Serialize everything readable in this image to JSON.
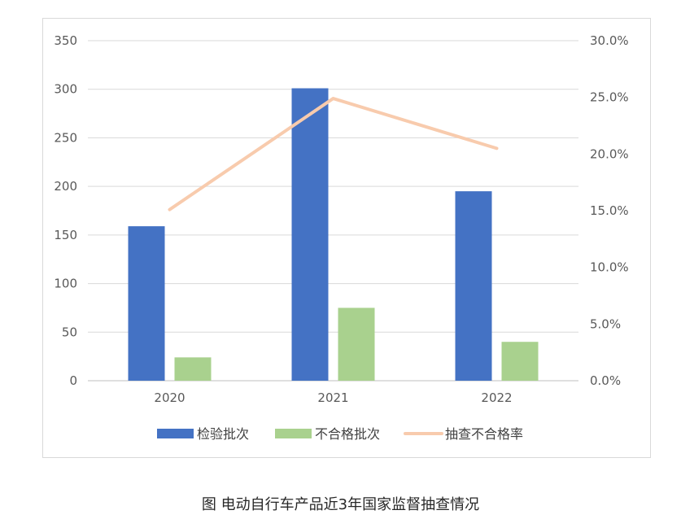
{
  "chart_data": {
    "type": "bar",
    "categories": [
      "2020",
      "2021",
      "2022"
    ],
    "series": [
      {
        "name": "检验批次",
        "kind": "bar",
        "axis": "left",
        "color": "#4472C4",
        "values": [
          159,
          301,
          195
        ]
      },
      {
        "name": "不合格批次",
        "kind": "bar",
        "axis": "left",
        "color": "#A9D18E",
        "values": [
          24,
          75,
          40
        ]
      },
      {
        "name": "抽查不合格率",
        "kind": "line",
        "axis": "right",
        "color": "#F8CBAD",
        "values": [
          0.151,
          0.249,
          0.205
        ]
      }
    ],
    "y_left": {
      "ylim": [
        0,
        350
      ],
      "ticks": [
        "0",
        "50",
        "100",
        "150",
        "200",
        "250",
        "300",
        "350"
      ]
    },
    "y_right": {
      "ylim": [
        0,
        0.3
      ],
      "ticks": [
        "0.0%",
        "5.0%",
        "10.0%",
        "15.0%",
        "20.0%",
        "25.0%",
        "30.0%"
      ]
    },
    "grid": true,
    "legend_position": "bottom"
  },
  "caption": "图 电动自行车产品近3年国家监督抽查情况"
}
